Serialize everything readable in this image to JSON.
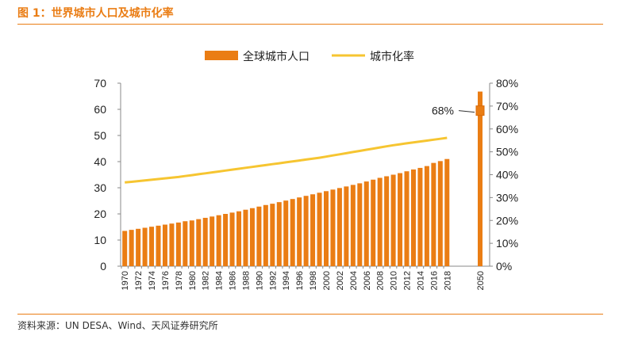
{
  "title": "图 1：世界城市人口及城市化率",
  "source": "资料来源：UN DESA、Wind、天风证券研究所",
  "colors": {
    "bar": "#ea7d14",
    "line": "#f6c531",
    "accent": "#ea7d14"
  },
  "chart_data": {
    "type": "bar",
    "legend": {
      "position": "top-center",
      "entries": [
        "全球城市人口",
        "城市化率"
      ]
    },
    "categories": [
      "1970",
      "1971",
      "1972",
      "1973",
      "1974",
      "1975",
      "1976",
      "1977",
      "1978",
      "1979",
      "1980",
      "1981",
      "1982",
      "1983",
      "1984",
      "1985",
      "1986",
      "1987",
      "1988",
      "1989",
      "1990",
      "1991",
      "1992",
      "1993",
      "1994",
      "1995",
      "1996",
      "1997",
      "1998",
      "1999",
      "2000",
      "2001",
      "2002",
      "2003",
      "2004",
      "2005",
      "2006",
      "2007",
      "2008",
      "2009",
      "2010",
      "2011",
      "2012",
      "2013",
      "2014",
      "2015",
      "2016",
      "2017",
      "2018",
      "2050"
    ],
    "xtick_labels": [
      "1970",
      "1972",
      "1974",
      "1976",
      "1978",
      "1980",
      "1982",
      "1984",
      "1986",
      "1988",
      "1990",
      "1992",
      "1994",
      "1996",
      "1998",
      "2000",
      "2002",
      "2004",
      "2006",
      "2008",
      "2010",
      "2012",
      "2014",
      "2016",
      "2018",
      "2050"
    ],
    "series": [
      {
        "name": "全球城市人口",
        "type": "bar",
        "axis": "left",
        "values": [
          13.5,
          13.9,
          14.3,
          14.7,
          15.1,
          15.5,
          15.9,
          16.3,
          16.7,
          17.2,
          17.5,
          18.0,
          18.5,
          19.0,
          19.5,
          20.0,
          20.5,
          21.0,
          21.6,
          22.2,
          22.8,
          23.4,
          23.9,
          24.5,
          25.1,
          25.7,
          26.3,
          26.9,
          27.5,
          28.1,
          28.7,
          29.3,
          29.9,
          30.5,
          31.1,
          31.7,
          32.4,
          33.1,
          33.8,
          34.4,
          35.0,
          35.6,
          36.3,
          37.0,
          37.6,
          38.3,
          39.5,
          40.2,
          41.0,
          66.8
        ]
      },
      {
        "name": "城市化率",
        "type": "line",
        "axis": "right",
        "values": [
          36.6,
          36.9,
          37.2,
          37.5,
          37.8,
          38.1,
          38.4,
          38.7,
          39.0,
          39.4,
          39.8,
          40.2,
          40.6,
          41.0,
          41.4,
          41.8,
          42.2,
          42.6,
          43.0,
          43.4,
          43.8,
          44.2,
          44.6,
          45.0,
          45.4,
          45.8,
          46.2,
          46.6,
          47.0,
          47.4,
          47.9,
          48.4,
          48.9,
          49.4,
          49.9,
          50.4,
          50.9,
          51.4,
          51.9,
          52.4,
          52.9,
          53.3,
          53.7,
          54.1,
          54.5,
          54.9,
          55.3,
          55.7,
          56.1,
          null
        ],
        "point_2050": 68
      }
    ],
    "annotation": "68%",
    "yleft": {
      "ylim": [
        0,
        70
      ],
      "ticks": [
        "0",
        "10",
        "20",
        "30",
        "40",
        "50",
        "60",
        "70"
      ]
    },
    "yright": {
      "ylim": [
        0,
        80
      ],
      "ticks": [
        "0%",
        "10%",
        "20%",
        "30%",
        "40%",
        "50%",
        "60%",
        "70%",
        "80%"
      ]
    },
    "grid": false
  }
}
